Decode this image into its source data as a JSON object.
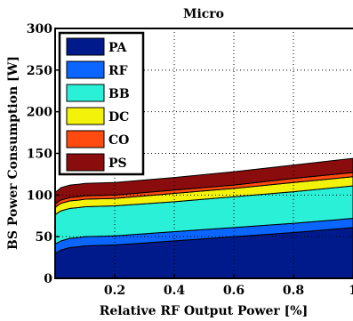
{
  "chart_data": {
    "type": "area",
    "stacked": true,
    "title": "Micro",
    "xlabel": "Relative RF Output Power [%]",
    "ylabel": "BS Power Consumption [W]",
    "xlim": [
      0,
      1
    ],
    "ylim": [
      0,
      300
    ],
    "xticks": [
      0.2,
      0.4,
      0.6,
      0.8,
      1
    ],
    "xtick_labels": [
      "0.2",
      "0.4",
      "0.6",
      "0.8",
      "1"
    ],
    "yticks": [
      0,
      50,
      100,
      150,
      200,
      250,
      300
    ],
    "ytick_labels": [
      "0",
      "50",
      "100",
      "150",
      "200",
      "250",
      "300"
    ],
    "grid": true,
    "legend_position": "top-left",
    "x": [
      0,
      0.01,
      0.02,
      0.05,
      0.08,
      0.1,
      0.2,
      0.4,
      0.6,
      0.8,
      1.0
    ],
    "series": [
      {
        "name": "PA",
        "color": "#001a8c",
        "values": [
          30,
          32,
          34,
          37,
          38,
          39,
          40,
          45,
          50,
          55,
          61
        ]
      },
      {
        "name": "RF",
        "color": "#0a66ff",
        "values": [
          11,
          11,
          11,
          11,
          11,
          11,
          11,
          11,
          11,
          11,
          11
        ]
      },
      {
        "name": "BB",
        "color": "#2bf0d8",
        "values": [
          35,
          36,
          36,
          36,
          36,
          36,
          36,
          36,
          37,
          38,
          39
        ]
      },
      {
        "name": "DC",
        "color": "#f2f20a",
        "values": [
          9,
          9,
          9,
          9,
          9,
          9,
          9,
          10,
          10,
          11,
          11
        ]
      },
      {
        "name": "CO",
        "color": "#ff4a10",
        "values": [
          4,
          4,
          4,
          4,
          4,
          4,
          4,
          4,
          4,
          5,
          5
        ]
      },
      {
        "name": "PS",
        "color": "#8a0c0c",
        "values": [
          14,
          14,
          15,
          15,
          15,
          15,
          15,
          15,
          16,
          16,
          17
        ]
      }
    ]
  }
}
